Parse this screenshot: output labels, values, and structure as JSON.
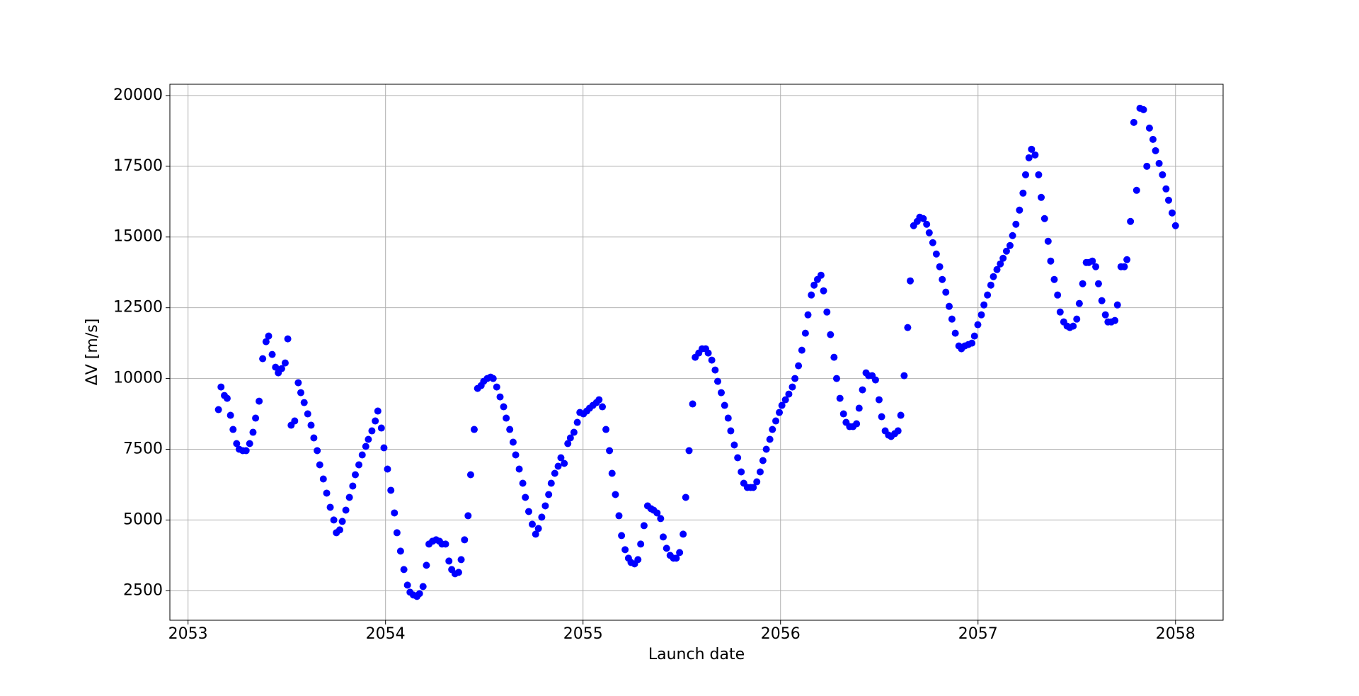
{
  "chart_data": {
    "type": "scatter",
    "x_label": "Launch date",
    "y_label": "ΔV [m/s]",
    "xlim": [
      2052.908,
      2058.241
    ],
    "ylim": [
      1458,
      20398
    ],
    "xticks": [
      2053,
      2054,
      2055,
      2056,
      2057,
      2058
    ],
    "yticks": [
      2500,
      5000,
      7500,
      10000,
      12500,
      15000,
      17500,
      20000
    ],
    "grid": true,
    "color": "#0000ff",
    "x": [
      2053.154,
      2053.167,
      2053.184,
      2053.198,
      2053.215,
      2053.228,
      2053.246,
      2053.259,
      2053.277,
      2053.294,
      2053.312,
      2053.329,
      2053.342,
      2053.36,
      2053.378,
      2053.395,
      2053.408,
      2053.426,
      2053.443,
      2053.457,
      2053.474,
      2053.492,
      2053.505,
      2053.522,
      2053.54,
      2053.558,
      2053.571,
      2053.588,
      2053.606,
      2053.623,
      2053.637,
      2053.654,
      2053.667,
      2053.685,
      2053.702,
      2053.72,
      2053.738,
      2053.751,
      2053.768,
      2053.781,
      2053.799,
      2053.817,
      2053.834,
      2053.847,
      2053.865,
      2053.882,
      2053.9,
      2053.913,
      2053.931,
      2053.948,
      2053.961,
      2053.979,
      2053.992,
      2054.01,
      2054.027,
      2054.045,
      2054.058,
      2054.076,
      2054.093,
      2054.111,
      2054.124,
      2054.141,
      2054.159,
      2054.172,
      2054.19,
      2054.207,
      2054.22,
      2054.238,
      2054.256,
      2054.273,
      2054.286,
      2054.304,
      2054.321,
      2054.335,
      2054.352,
      2054.37,
      2054.383,
      2054.4,
      2054.418,
      2054.431,
      2054.449,
      2054.466,
      2054.484,
      2054.497,
      2054.515,
      2054.532,
      2054.545,
      2054.563,
      2054.58,
      2054.598,
      2054.611,
      2054.629,
      2054.646,
      2054.659,
      2054.677,
      2054.695,
      2054.708,
      2054.725,
      2054.743,
      2054.76,
      2054.774,
      2054.791,
      2054.809,
      2054.826,
      2054.839,
      2054.857,
      2054.874,
      2054.888,
      2054.905,
      2054.923,
      2054.936,
      2054.954,
      2054.971,
      2054.984,
      2055.002,
      2055.019,
      2055.033,
      2055.05,
      2055.068,
      2055.081,
      2055.098,
      2055.116,
      2055.134,
      2055.147,
      2055.164,
      2055.182,
      2055.195,
      2055.213,
      2055.23,
      2055.243,
      2055.261,
      2055.278,
      2055.292,
      2055.309,
      2055.327,
      2055.344,
      2055.357,
      2055.375,
      2055.393,
      2055.406,
      2055.423,
      2055.441,
      2055.458,
      2055.472,
      2055.489,
      2055.507,
      2055.52,
      2055.537,
      2055.555,
      2055.568,
      2055.586,
      2055.603,
      2055.621,
      2055.634,
      2055.652,
      2055.669,
      2055.682,
      2055.7,
      2055.717,
      2055.735,
      2055.748,
      2055.766,
      2055.783,
      2055.801,
      2055.814,
      2055.832,
      2055.849,
      2055.862,
      2055.88,
      2055.897,
      2055.911,
      2055.928,
      2055.946,
      2055.959,
      2055.976,
      2055.994,
      2056.007,
      2056.025,
      2056.042,
      2056.06,
      2056.073,
      2056.091,
      2056.108,
      2056.126,
      2056.139,
      2056.156,
      2056.17,
      2056.187,
      2056.205,
      2056.218,
      2056.235,
      2056.253,
      2056.271,
      2056.284,
      2056.301,
      2056.319,
      2056.332,
      2056.35,
      2056.367,
      2056.385,
      2056.398,
      2056.415,
      2056.433,
      2056.446,
      2056.464,
      2056.481,
      2056.499,
      2056.512,
      2056.53,
      2056.547,
      2056.56,
      2056.578,
      2056.595,
      2056.609,
      2056.626,
      2056.644,
      2056.657,
      2056.674,
      2056.692,
      2056.705,
      2056.723,
      2056.74,
      2056.753,
      2056.771,
      2056.789,
      2056.806,
      2056.819,
      2056.837,
      2056.854,
      2056.868,
      2056.885,
      2056.903,
      2056.916,
      2056.933,
      2056.951,
      2056.969,
      2056.982,
      2056.999,
      2057.017,
      2057.03,
      2057.048,
      2057.065,
      2057.078,
      2057.096,
      2057.113,
      2057.127,
      2057.144,
      2057.162,
      2057.175,
      2057.192,
      2057.21,
      2057.228,
      2057.241,
      2057.258,
      2057.271,
      2057.289,
      2057.307,
      2057.32,
      2057.337,
      2057.355,
      2057.368,
      2057.386,
      2057.403,
      2057.416,
      2057.434,
      2057.451,
      2057.465,
      2057.482,
      2057.5,
      2057.513,
      2057.53,
      2057.548,
      2057.561,
      2057.579,
      2057.596,
      2057.61,
      2057.627,
      2057.645,
      2057.658,
      2057.675,
      2057.693,
      2057.706,
      2057.724,
      2057.741,
      2057.754,
      2057.772,
      2057.789,
      2057.803,
      2057.82,
      2057.838,
      2057.855,
      2057.868,
      2057.886,
      2057.899,
      2057.917,
      2057.934,
      2057.952,
      2057.965,
      2057.983,
      2058.0
    ],
    "values": [
      8900,
      9700,
      9400,
      9300,
      8700,
      8200,
      7700,
      7500,
      7450,
      7450,
      7700,
      8100,
      8600,
      9200,
      10700,
      11300,
      11500,
      10850,
      10400,
      10200,
      10350,
      10550,
      11400,
      8350,
      8500,
      9850,
      9500,
      9150,
      8750,
      8350,
      7900,
      7450,
      6950,
      6450,
      5950,
      5450,
      5000,
      4550,
      4650,
      4950,
      5350,
      5800,
      6200,
      6600,
      6950,
      7300,
      7600,
      7850,
      8150,
      8500,
      8850,
      8250,
      7550,
      6800,
      6050,
      5250,
      4550,
      3900,
      3250,
      2700,
      2450,
      2350,
      2300,
      2400,
      2650,
      3400,
      4150,
      4250,
      4300,
      4250,
      4150,
      4150,
      3550,
      3250,
      3100,
      3150,
      3600,
      4300,
      5150,
      6600,
      8200,
      9650,
      9750,
      9900,
      10000,
      10050,
      10000,
      9700,
      9350,
      9000,
      8600,
      8200,
      7750,
      7300,
      6800,
      6300,
      5800,
      5300,
      4850,
      4500,
      4700,
      5100,
      5500,
      5900,
      6300,
      6650,
      6900,
      7200,
      7000,
      7700,
      7900,
      8100,
      8450,
      8800,
      8750,
      8850,
      8950,
      9050,
      9150,
      9250,
      9000,
      8200,
      7450,
      6650,
      5900,
      5150,
      4450,
      3950,
      3650,
      3500,
      3450,
      3600,
      4150,
      4800,
      5500,
      5400,
      5350,
      5250,
      5050,
      4400,
      4000,
      3750,
      3650,
      3650,
      3850,
      4500,
      5800,
      7450,
      9100,
      10750,
      10900,
      11050,
      11050,
      10900,
      10650,
      10300,
      9900,
      9500,
      9050,
      8600,
      8150,
      7650,
      7200,
      6700,
      6300,
      6150,
      6150,
      6150,
      6350,
      6700,
      7100,
      7500,
      7850,
      8200,
      8500,
      8800,
      9050,
      9250,
      9450,
      9700,
      10000,
      10450,
      11000,
      11600,
      12250,
      12950,
      13300,
      13500,
      13650,
      13100,
      12350,
      11550,
      10750,
      10000,
      9300,
      8750,
      8450,
      8300,
      8300,
      8400,
      8950,
      9600,
      10200,
      10100,
      10100,
      9950,
      9250,
      8650,
      8150,
      8000,
      7950,
      8050,
      8150,
      8700,
      10100,
      11800,
      13450,
      15400,
      15550,
      15700,
      15650,
      15450,
      15150,
      14800,
      14400,
      13950,
      13500,
      13050,
      12550,
      12100,
      11600,
      11150,
      11050,
      11150,
      11200,
      11250,
      11500,
      11900,
      12250,
      12600,
      12950,
      13300,
      13600,
      13850,
      14050,
      14250,
      14500,
      14700,
      15050,
      15450,
      15950,
      16550,
      17200,
      17800,
      18100,
      17900,
      17200,
      16400,
      15650,
      14850,
      14150,
      13500,
      12950,
      12350,
      12000,
      11850,
      11800,
      11850,
      12100,
      12650,
      13350,
      14100,
      14100,
      14150,
      13950,
      13350,
      12750,
      12250,
      12000,
      12000,
      12050,
      12600,
      13950,
      13950,
      14200,
      15550,
      19050,
      16650,
      19550,
      19500,
      17500,
      18850,
      18450,
      18050,
      17600,
      17200,
      16700,
      16300,
      15850,
      15400
    ]
  }
}
